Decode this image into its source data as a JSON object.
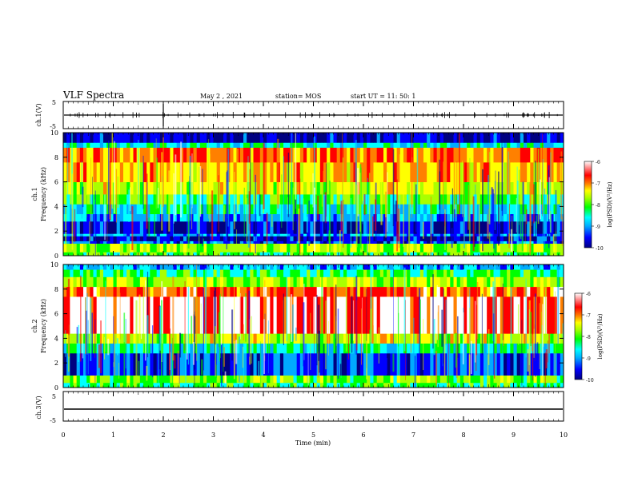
{
  "header": {
    "title": "VLF Spectra",
    "date": "May 2  , 2021",
    "station": "station= MOS",
    "start": "start  UT =   11: 50: 1"
  },
  "chart_data": [
    {
      "type": "line",
      "panel": "ch1-waveform",
      "ylabel": "ch.1(V)",
      "ylim": [
        -5,
        5
      ],
      "ytick_labels": [
        "5",
        "-5"
      ],
      "baseline": 0
    },
    {
      "type": "heatmap",
      "panel": "ch1-spectrogram",
      "ylabel": "ch.1\nFrequency (kHz)",
      "ylabel_lines": [
        "ch.1",
        "Frequency (kHz)"
      ],
      "ylim": [
        0,
        10
      ],
      "ytick_labels": [
        "0",
        "2",
        "4",
        "6",
        "8",
        "10"
      ],
      "colorbar": {
        "label": "log(PSD)(V²/Hz)",
        "range": [
          -10,
          -6
        ],
        "tick_labels": [
          "-6",
          "-7",
          "-8",
          "-9",
          "-10"
        ]
      },
      "bands": [
        {
          "f0": 0.0,
          "f1": 0.3,
          "level": -8.2
        },
        {
          "f0": 0.3,
          "f1": 1.0,
          "level": -7.8
        },
        {
          "f0": 1.0,
          "f1": 1.2,
          "level": -9.2
        },
        {
          "f0": 1.2,
          "f1": 1.6,
          "level": -9.6
        },
        {
          "f0": 1.6,
          "f1": 1.8,
          "level": -9.0
        },
        {
          "f0": 1.8,
          "f1": 2.8,
          "level": -9.5
        },
        {
          "f0": 2.8,
          "f1": 3.4,
          "level": -9.0
        },
        {
          "f0": 3.4,
          "f1": 4.2,
          "level": -8.6
        },
        {
          "f0": 4.2,
          "f1": 5.0,
          "level": -8.1
        },
        {
          "f0": 5.0,
          "f1": 6.0,
          "level": -7.6
        },
        {
          "f0": 6.0,
          "f1": 7.6,
          "level": -7.2
        },
        {
          "f0": 7.6,
          "f1": 8.8,
          "level": -6.9
        },
        {
          "f0": 8.8,
          "f1": 9.2,
          "level": -8.6
        },
        {
          "f0": 9.2,
          "f1": 10.0,
          "level": -9.6
        }
      ]
    },
    {
      "type": "heatmap",
      "panel": "ch2-spectrogram",
      "ylabel": "ch.2\nFrequency (kHz)",
      "ylabel_lines": [
        "ch.2",
        "Frequency (kHz)"
      ],
      "ylim": [
        0,
        10
      ],
      "ytick_labels": [
        "0",
        "2",
        "4",
        "6",
        "8",
        "10"
      ],
      "colorbar": {
        "label": "log(PSD)(V²/Hz)",
        "range": [
          -10,
          -6
        ],
        "tick_labels": [
          "-6",
          "-7",
          "-8",
          "-9",
          "-10"
        ]
      },
      "bands": [
        {
          "f0": 0.0,
          "f1": 0.4,
          "level": -8.3
        },
        {
          "f0": 0.4,
          "f1": 1.0,
          "level": -8.0
        },
        {
          "f0": 1.0,
          "f1": 2.8,
          "level": -9.3
        },
        {
          "f0": 2.8,
          "f1": 3.6,
          "level": -8.5
        },
        {
          "f0": 3.6,
          "f1": 4.4,
          "level": -7.6
        },
        {
          "f0": 4.4,
          "f1": 7.4,
          "level": -6.4
        },
        {
          "f0": 7.4,
          "f1": 8.2,
          "level": -6.8
        },
        {
          "f0": 8.2,
          "f1": 9.0,
          "level": -7.7
        },
        {
          "f0": 9.0,
          "f1": 9.6,
          "level": -8.3
        },
        {
          "f0": 9.6,
          "f1": 10.0,
          "level": -8.9
        }
      ]
    },
    {
      "type": "line",
      "panel": "ch3-waveform",
      "ylabel": "ch.3(V)",
      "ylim": [
        -5,
        5
      ],
      "ytick_labels": [
        "5",
        "-5"
      ],
      "baseline": 0
    }
  ],
  "xaxis": {
    "label": "Time  (min)",
    "xlim": [
      0,
      10
    ],
    "tick_labels": [
      "0",
      "1",
      "2",
      "3",
      "4",
      "5",
      "6",
      "7",
      "8",
      "9",
      "10"
    ]
  },
  "colors": {
    "colormap": [
      "#000080",
      "#0000ff",
      "#00aaff",
      "#00ffff",
      "#00ff00",
      "#aaff00",
      "#ffff00",
      "#ff8000",
      "#ff0000",
      "#ffffff"
    ]
  }
}
